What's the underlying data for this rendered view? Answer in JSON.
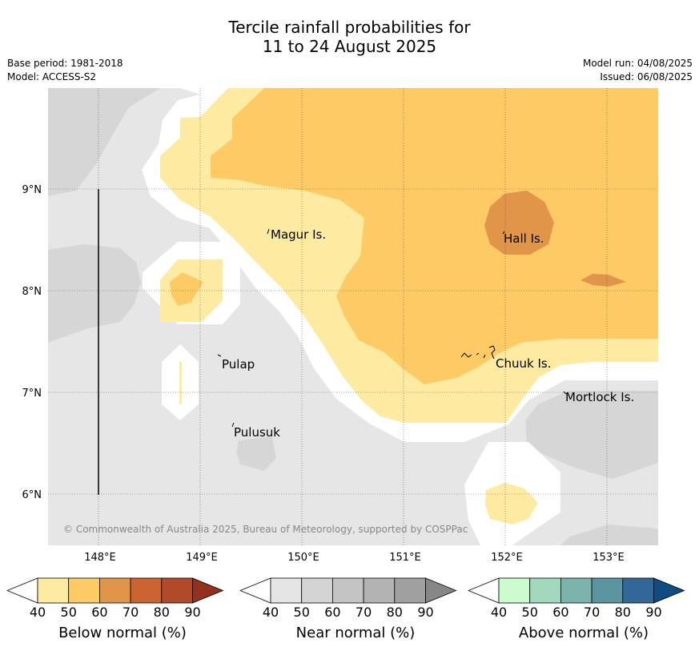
{
  "title": {
    "line1": "Tercile rainfall probabilities for",
    "line2": "11 to 24 August 2025"
  },
  "meta": {
    "base_period": "Base period: 1981-2018",
    "model": "Model: ACCESS-S2",
    "model_run": "Model run: 04/08/2025",
    "issued": "Issued: 06/08/2025"
  },
  "map": {
    "copyright": "© Commonwealth of Australia 2025, Bureau of Meteorology, supported by COSPPac",
    "lat_labels": [
      "9°N",
      "8°N",
      "7°N",
      "6°N"
    ],
    "lon_labels": [
      "148°E",
      "149°E",
      "150°E",
      "151°E",
      "152°E",
      "153°E"
    ],
    "places": [
      {
        "name": "Magur Is."
      },
      {
        "name": "Hall Is."
      },
      {
        "name": "Pulap"
      },
      {
        "name": "Chuuk Is."
      },
      {
        "name": "Mortlock Is."
      },
      {
        "name": "Pulusuk"
      }
    ],
    "colors": {
      "below_40_50": "#feeaa1",
      "below_50_60": "#feca66",
      "below_60_70": "#e09548",
      "near_40_50": "#e6e6e6",
      "near_50_60": "#d6d6d6",
      "no_signal": "#ffffff"
    }
  },
  "colorbars": [
    {
      "label": "Below normal (%)",
      "ticks": [
        "40",
        "50",
        "60",
        "70",
        "80",
        "90"
      ],
      "colors": [
        "#feeaa1",
        "#feca66",
        "#e09548",
        "#cc6333",
        "#b04a28"
      ],
      "extend_color": "#92321c"
    },
    {
      "label": "Near normal (%)",
      "ticks": [
        "40",
        "50",
        "60",
        "70",
        "80",
        "90"
      ],
      "colors": [
        "#e5e5e5",
        "#d4d4d4",
        "#c4c4c4",
        "#b3b3b3",
        "#a0a0a0"
      ],
      "extend_color": "#878787"
    },
    {
      "label": "Above normal (%)",
      "ticks": [
        "40",
        "50",
        "60",
        "70",
        "80",
        "90"
      ],
      "colors": [
        "#ccfccd",
        "#a2d8bb",
        "#7cb3ad",
        "#5a94a1",
        "#326899"
      ],
      "extend_color": "#0f4c81"
    }
  ]
}
